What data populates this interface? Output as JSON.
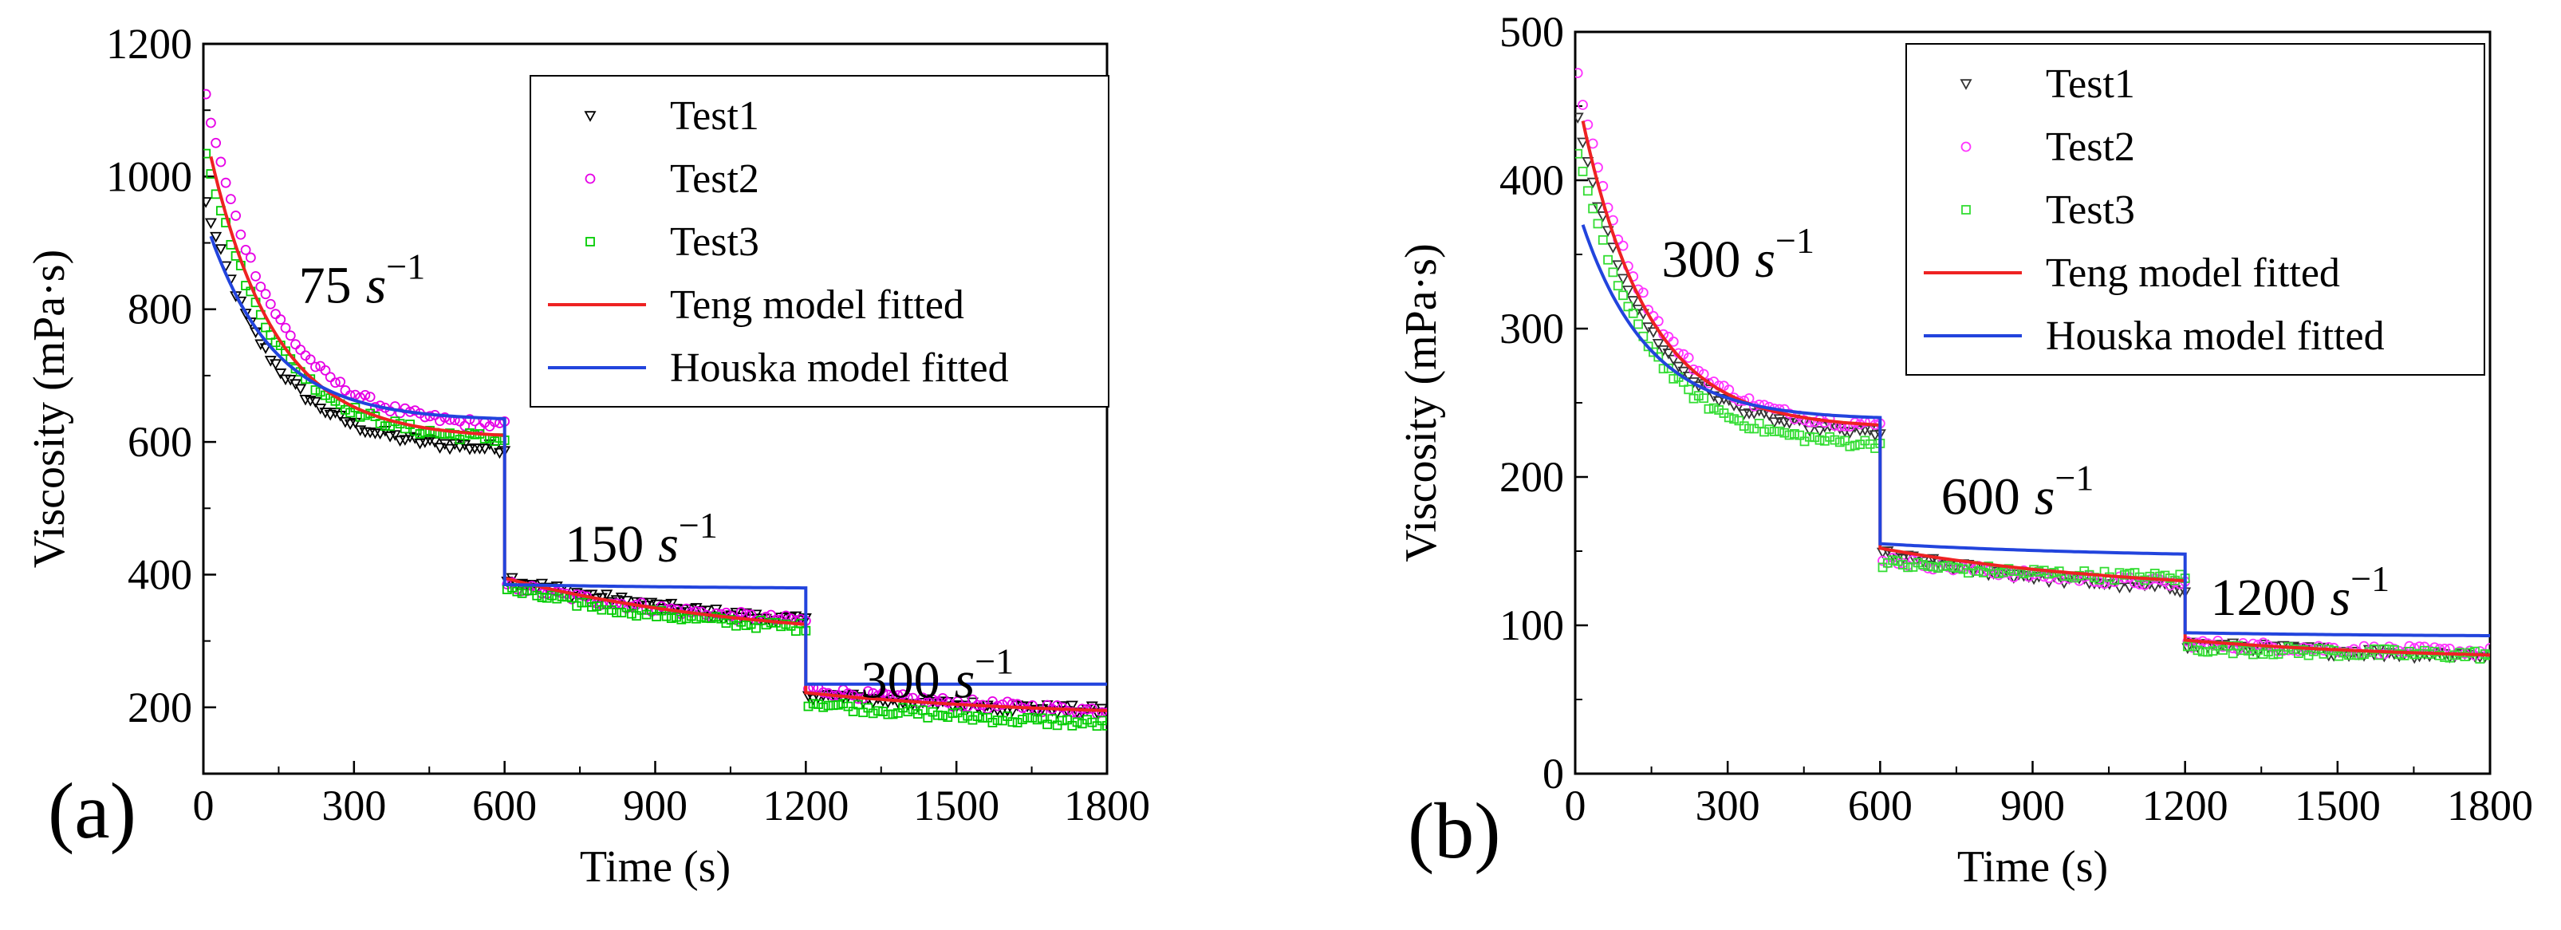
{
  "chart_data": [
    {
      "id": "a",
      "type": "scatter",
      "panel_label": "(a)",
      "title": "",
      "xlabel": "Time (s)",
      "ylabel": "Viscosity (mPa·s)",
      "xlim": [
        0,
        1800
      ],
      "ylim": [
        100,
        1200
      ],
      "xticks": [
        0,
        300,
        600,
        900,
        1200,
        1500,
        1800
      ],
      "xtick_labels": [
        "0",
        "300",
        "600",
        "900",
        "1200",
        "1500",
        "1800"
      ],
      "yticks": [
        200,
        400,
        600,
        800,
        1000,
        1200
      ],
      "ytick_labels": [
        "200",
        "400",
        "600",
        "800",
        "1000",
        "1200"
      ],
      "legend_position": "top-right",
      "legend": [
        "Test1",
        "Test2",
        "Test3",
        "Teng model fitted",
        "Houska model fitted"
      ],
      "series_colors": {
        "Test1": "#000000",
        "Test2": "#e600e6",
        "Test3": "#00cc00",
        "Teng model fitted": "#ee2222",
        "Houska model fitted": "#2244dd"
      },
      "annotations": [
        {
          "num": "75",
          "base": "s",
          "exp": "−1",
          "at_x": 190,
          "at_y": 810
        },
        {
          "num": "150",
          "base": "s",
          "exp": "−1",
          "at_x": 720,
          "at_y": 420
        },
        {
          "num": "300",
          "base": "s",
          "exp": "−1",
          "at_x": 1310,
          "at_y": 215
        }
      ],
      "series": [
        {
          "name": "Test1",
          "kind": "scatter",
          "marker": "triangle-down",
          "step_start": [
            960,
            395,
            220
          ],
          "step_end": [
            590,
            330,
            195
          ]
        },
        {
          "name": "Test2",
          "kind": "scatter",
          "marker": "circle",
          "step_start": [
            1120,
            385,
            228
          ],
          "step_end": [
            625,
            330,
            195
          ]
        },
        {
          "name": "Test3",
          "kind": "scatter",
          "marker": "square",
          "step_start": [
            1040,
            378,
            208
          ],
          "step_end": [
            605,
            320,
            175
          ]
        },
        {
          "name": "Teng model fitted",
          "kind": "line",
          "step_start": [
            1030,
            395,
            222
          ],
          "step_end": [
            610,
            325,
            195
          ]
        },
        {
          "name": "Houska model fitted",
          "kind": "line",
          "step_start": [
            910,
            385,
            235
          ],
          "step_end": [
            635,
            380,
            235
          ]
        }
      ]
    },
    {
      "id": "b",
      "type": "scatter",
      "panel_label": "(b)",
      "title": "",
      "xlabel": "Time (s)",
      "ylabel": "Viscosity (mPa·s)",
      "xlim": [
        0,
        1800
      ],
      "ylim": [
        0,
        500
      ],
      "xticks": [
        0,
        300,
        600,
        900,
        1200,
        1500,
        1800
      ],
      "xtick_labels": [
        "0",
        "300",
        "600",
        "900",
        "1200",
        "1500",
        "1800"
      ],
      "yticks": [
        0,
        100,
        200,
        300,
        400,
        500
      ],
      "ytick_labels": [
        "0",
        "100",
        "200",
        "300",
        "400",
        "500"
      ],
      "legend_position": "top-right",
      "legend": [
        "Test1",
        "Test2",
        "Test3",
        "Teng model fitted",
        "Houska model fitted"
      ],
      "series_colors": {
        "Test1": "#333333",
        "Test2": "#ff33ff",
        "Test3": "#33dd33",
        "Teng model fitted": "#ee2222",
        "Houska model fitted": "#2244dd"
      },
      "annotations": [
        {
          "num": "300",
          "base": "s",
          "exp": "−1",
          "at_x": 170,
          "at_y": 335
        },
        {
          "num": "600",
          "base": "s",
          "exp": "−1",
          "at_x": 720,
          "at_y": 175
        },
        {
          "num": "1200",
          "base": "s",
          "exp": "−1",
          "at_x": 1250,
          "at_y": 107
        }
      ],
      "series": [
        {
          "name": "Test1",
          "kind": "scatter",
          "marker": "triangle-down",
          "step_start": [
            440,
            148,
            87
          ],
          "step_end": [
            230,
            125,
            80
          ]
        },
        {
          "name": "Test2",
          "kind": "scatter",
          "marker": "circle",
          "step_start": [
            470,
            145,
            88
          ],
          "step_end": [
            235,
            128,
            82
          ]
        },
        {
          "name": "Test3",
          "kind": "scatter",
          "marker": "square",
          "step_start": [
            420,
            142,
            85
          ],
          "step_end": [
            222,
            132,
            80
          ]
        },
        {
          "name": "Teng model fitted",
          "kind": "line",
          "step_start": [
            440,
            152,
            90
          ],
          "step_end": [
            235,
            130,
            80
          ]
        },
        {
          "name": "Houska model fitted",
          "kind": "line",
          "step_start": [
            370,
            155,
            95
          ],
          "step_end": [
            240,
            148,
            93
          ]
        }
      ]
    }
  ]
}
